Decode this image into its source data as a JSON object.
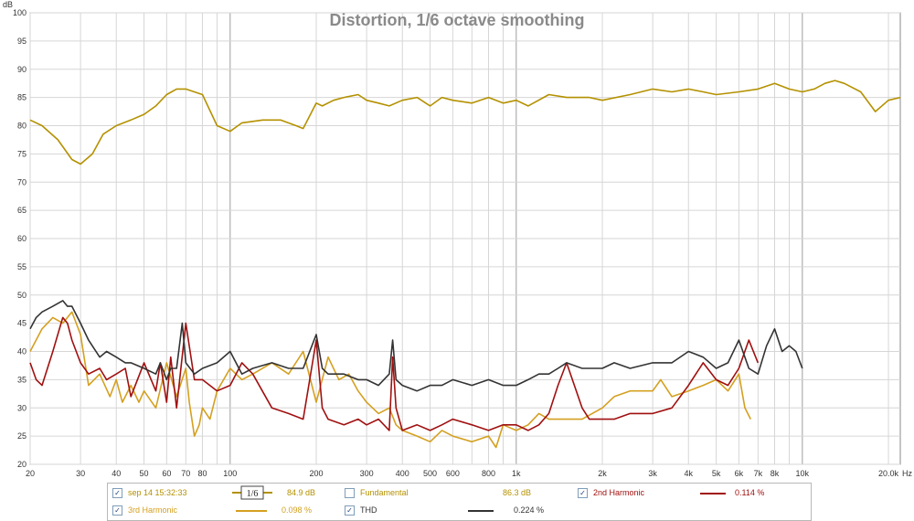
{
  "chart_data": {
    "type": "line",
    "title": "Distortion, 1/6 octave smoothing",
    "xscale": "log",
    "xlim": [
      20,
      22000
    ],
    "ylim": [
      20,
      100
    ],
    "ylabel": "dB",
    "xlabel_unit": "Hz",
    "grid": true,
    "x_ticks": [
      {
        "v": 20,
        "label": "20"
      },
      {
        "v": 30,
        "label": "30"
      },
      {
        "v": 40,
        "label": "40"
      },
      {
        "v": 50,
        "label": "50"
      },
      {
        "v": 60,
        "label": "60"
      },
      {
        "v": 70,
        "label": "70"
      },
      {
        "v": 80,
        "label": "80"
      },
      {
        "v": 100,
        "label": "100"
      },
      {
        "v": 200,
        "label": "200"
      },
      {
        "v": 300,
        "label": "300"
      },
      {
        "v": 400,
        "label": "400"
      },
      {
        "v": 500,
        "label": "500"
      },
      {
        "v": 600,
        "label": "600"
      },
      {
        "v": 800,
        "label": "800"
      },
      {
        "v": 1000,
        "label": "1k"
      },
      {
        "v": 2000,
        "label": "2k"
      },
      {
        "v": 3000,
        "label": "3k"
      },
      {
        "v": 4000,
        "label": "4k"
      },
      {
        "v": 5000,
        "label": "5k"
      },
      {
        "v": 6000,
        "label": "6k"
      },
      {
        "v": 7000,
        "label": "7k"
      },
      {
        "v": 8000,
        "label": "8k"
      },
      {
        "v": 10000,
        "label": "10k"
      },
      {
        "v": 20000,
        "label": "20.0k"
      }
    ],
    "y_ticks": [
      20,
      25,
      30,
      35,
      40,
      45,
      50,
      55,
      60,
      65,
      70,
      75,
      80,
      85,
      90,
      95,
      100
    ],
    "series": [
      {
        "name": "sep 14 15:32:33",
        "color": "#b49100",
        "x": [
          20,
          22,
          25,
          28,
          30,
          33,
          36,
          40,
          45,
          50,
          55,
          60,
          65,
          70,
          80,
          90,
          100,
          110,
          130,
          150,
          170,
          180,
          200,
          210,
          230,
          250,
          280,
          300,
          330,
          360,
          400,
          450,
          500,
          550,
          600,
          700,
          800,
          900,
          1000,
          1100,
          1300,
          1500,
          1800,
          2000,
          2500,
          3000,
          3500,
          4000,
          4500,
          5000,
          6000,
          7000,
          8000,
          9000,
          10000,
          11000,
          12000,
          13000,
          14000,
          16000,
          18000,
          20000,
          22000
        ],
        "y": [
          81,
          80,
          77.5,
          74,
          73.2,
          75,
          78.5,
          80,
          81,
          82,
          83.5,
          85.5,
          86.5,
          86.5,
          85.5,
          80,
          79,
          80.5,
          81,
          81,
          80,
          79.5,
          84,
          83.5,
          84.5,
          85,
          85.5,
          84.5,
          84,
          83.5,
          84.5,
          85,
          83.5,
          85,
          84.5,
          84,
          85,
          84,
          84.5,
          83.5,
          85.5,
          85,
          85,
          84.5,
          85.5,
          86.5,
          86,
          86.5,
          86,
          85.5,
          86,
          86.5,
          87.5,
          86.5,
          86,
          86.5,
          87.5,
          88,
          87.5,
          86,
          82.5,
          84.5,
          85
        ]
      },
      {
        "name": "2nd Harmonic",
        "color": "#a01010",
        "x": [
          20,
          21,
          22,
          24,
          26,
          27,
          28,
          30,
          32,
          35,
          37,
          40,
          43,
          45,
          50,
          55,
          57,
          60,
          62,
          65,
          70,
          75,
          80,
          90,
          100,
          110,
          120,
          140,
          160,
          180,
          200,
          210,
          220,
          250,
          280,
          300,
          330,
          360,
          370,
          380,
          400,
          450,
          500,
          550,
          600,
          700,
          800,
          900,
          1000,
          1100,
          1200,
          1300,
          1400,
          1500,
          1700,
          1800,
          2000,
          2200,
          2500,
          3000,
          3500,
          4000,
          4500,
          5000,
          5500,
          6000,
          6500,
          7000
        ],
        "y": [
          38,
          35,
          34,
          40,
          46,
          45,
          42,
          38,
          36,
          37,
          35,
          36,
          37,
          32,
          38,
          33,
          38,
          31,
          39,
          30,
          45,
          35,
          35,
          33,
          34,
          38,
          36,
          30,
          29,
          28,
          42,
          30,
          28,
          27,
          28,
          27,
          28,
          26,
          39,
          30,
          26,
          27,
          26,
          27,
          28,
          27,
          26,
          27,
          27,
          26,
          27,
          29,
          34,
          38,
          30,
          28,
          28,
          28,
          29,
          29,
          30,
          34,
          38,
          35,
          34,
          37,
          42,
          38
        ]
      },
      {
        "name": "3rd Harmonic",
        "color": "#d4a020",
        "x": [
          20,
          22,
          24,
          26,
          28,
          30,
          32,
          35,
          38,
          40,
          42,
          45,
          48,
          50,
          55,
          60,
          65,
          70,
          72,
          75,
          78,
          80,
          85,
          90,
          100,
          110,
          120,
          140,
          160,
          180,
          200,
          220,
          240,
          260,
          280,
          300,
          330,
          360,
          380,
          400,
          450,
          500,
          550,
          600,
          700,
          800,
          850,
          900,
          1000,
          1100,
          1200,
          1300,
          1500,
          1700,
          2000,
          2200,
          2500,
          3000,
          3200,
          3500,
          4000,
          4500,
          5000,
          5500,
          6000,
          6300,
          6600
        ],
        "y": [
          40,
          44,
          46,
          45,
          47,
          43,
          34,
          36,
          32,
          35,
          31,
          34,
          31,
          33,
          30,
          38,
          32,
          37,
          31,
          25,
          27,
          30,
          28,
          33,
          37,
          35,
          36,
          38,
          36,
          40,
          31,
          39,
          35,
          36,
          33,
          31,
          29,
          30,
          27,
          26,
          25,
          24,
          26,
          25,
          24,
          25,
          23,
          27,
          26,
          27,
          29,
          28,
          28,
          28,
          30,
          32,
          33,
          33,
          35,
          32,
          33,
          34,
          35,
          33,
          36,
          30,
          28
        ]
      },
      {
        "name": "THD",
        "color": "#333333",
        "x": [
          20,
          21,
          22,
          24,
          26,
          27,
          28,
          30,
          32,
          35,
          37,
          40,
          43,
          45,
          50,
          55,
          57,
          60,
          62,
          65,
          68,
          70,
          75,
          80,
          90,
          100,
          110,
          120,
          140,
          160,
          180,
          200,
          210,
          220,
          250,
          280,
          300,
          330,
          360,
          370,
          380,
          400,
          450,
          500,
          550,
          600,
          700,
          800,
          900,
          1000,
          1100,
          1200,
          1300,
          1400,
          1500,
          1700,
          1800,
          2000,
          2200,
          2500,
          3000,
          3500,
          4000,
          4500,
          5000,
          5500,
          6000,
          6500,
          7000,
          7500,
          8000,
          8500,
          9000,
          9500,
          10000
        ],
        "y": [
          44,
          46,
          47,
          48,
          49,
          48,
          48,
          45,
          42,
          39,
          40,
          39,
          38,
          38,
          37,
          36,
          38,
          35,
          37,
          37,
          45,
          38,
          36,
          37,
          38,
          40,
          36,
          37,
          38,
          37,
          37,
          43,
          37,
          36,
          36,
          35,
          35,
          34,
          36,
          42,
          35,
          34,
          33,
          34,
          34,
          35,
          34,
          35,
          34,
          34,
          35,
          36,
          36,
          37,
          38,
          37,
          37,
          37,
          38,
          37,
          38,
          38,
          40,
          39,
          37,
          38,
          42,
          37,
          36,
          41,
          44,
          40,
          41,
          40,
          37
        ]
      }
    ]
  },
  "legend": {
    "row1": [
      {
        "label": "sep 14 15:32:33",
        "checked": "✓",
        "value": "84.9 dB",
        "smoothing": "1/6"
      },
      {
        "label": "Fundamental",
        "checked": "",
        "value": "86.3 dB"
      },
      {
        "label": "2nd Harmonic",
        "checked": "✓",
        "value": "0.114 %"
      }
    ],
    "row2": [
      {
        "label": "3rd Harmonic",
        "checked": "✓",
        "value": "0.098 %"
      },
      {
        "label": "THD",
        "checked": "✓",
        "value": "0.224 %"
      }
    ]
  }
}
